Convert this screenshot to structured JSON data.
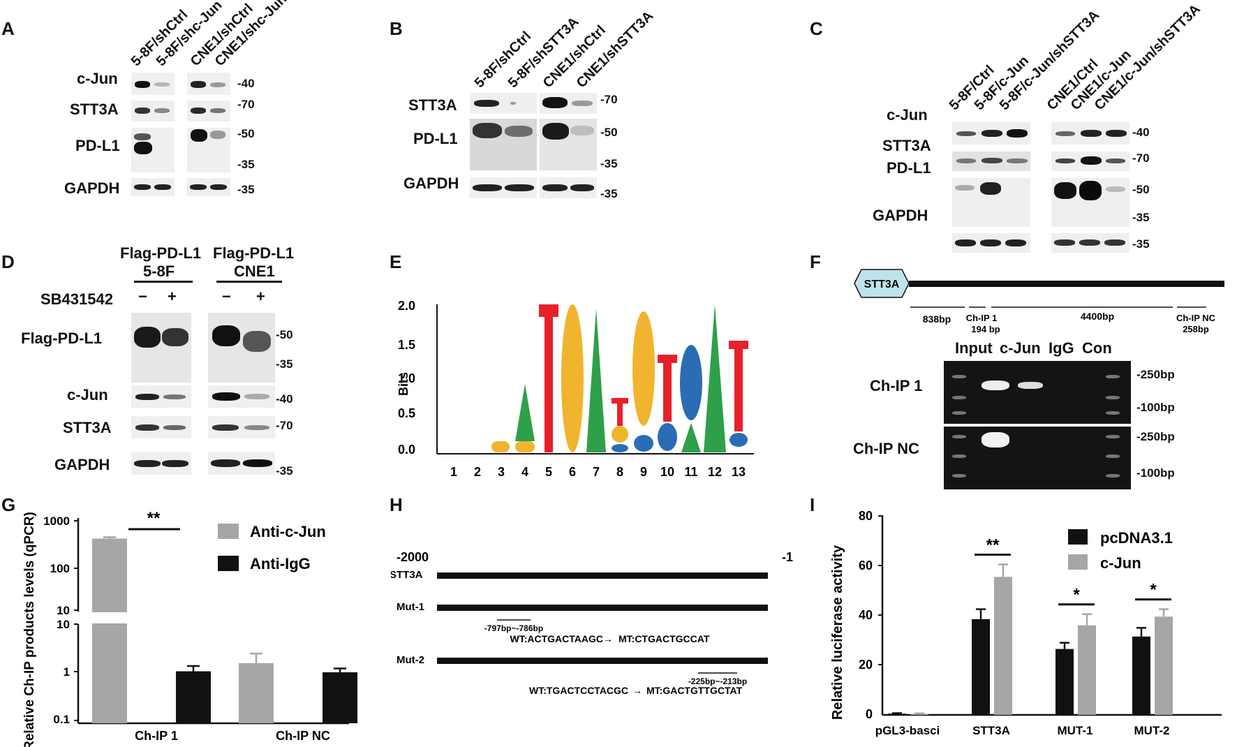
{
  "panels": [
    "A",
    "B",
    "C",
    "D",
    "E",
    "F",
    "G",
    "H",
    "I"
  ],
  "panelA": {
    "lanes": [
      "5-8F/shCtrl",
      "5-8F/shc-Jun",
      "CNE1/shCtrl",
      "CNE1/shc-Jun"
    ],
    "proteins": [
      "c-Jun",
      "STT3A",
      "PD-L1",
      "GAPDH"
    ],
    "mw": [
      "-40",
      "-70",
      "-50",
      "-35",
      "-35"
    ]
  },
  "panelB": {
    "lanes": [
      "5-8F/shCtrl",
      "5-8F/shSTT3A",
      "CNE1/shCtrl",
      "CNE1/shSTT3A"
    ],
    "proteins": [
      "STT3A",
      "PD-L1",
      "GAPDH"
    ],
    "mw": [
      "-70",
      "-50",
      "-35",
      "-35"
    ]
  },
  "panelC": {
    "lanes": [
      "5-8F/Ctrl",
      "5-8F/c-Jun",
      "5-8F/c-Jun/shSTT3A",
      "CNE1/Ctrl",
      "CNE1/c-Jun",
      "CNE1/c-Jun/shSTT3A"
    ],
    "proteins": [
      "c-Jun",
      "STT3A",
      "PD-L1",
      "GAPDH"
    ],
    "mw": [
      "-40",
      "-70",
      "-50",
      "-35",
      "-35"
    ]
  },
  "panelD": {
    "group1_title": "Flag-PD-L1",
    "group1_cell": "5-8F",
    "group2_title": "Flag-PD-L1",
    "group2_cell": "CNE1",
    "treatment": "SB431542",
    "signs": [
      "−",
      "+",
      "−",
      "+"
    ],
    "proteins": [
      "Flag-PD-L1",
      "c-Jun",
      "STT3A",
      "GAPDH"
    ],
    "mw": [
      "-50",
      "-35",
      "-40",
      "-70",
      "-35"
    ]
  },
  "panelE": {
    "ylabel": "Bits",
    "yticks": [
      "2.0",
      "1.5",
      "1.0",
      "0.5",
      "0.0"
    ],
    "positions": [
      "1",
      "2",
      "3",
      "4",
      "5",
      "6",
      "7",
      "8",
      "9",
      "10",
      "11",
      "12",
      "13"
    ],
    "motif": [
      "A",
      "T",
      "G",
      "A",
      "T",
      "G",
      "T",
      "C",
      "A",
      "T"
    ]
  },
  "panelF": {
    "gene": "STT3A",
    "segments": [
      "838bp",
      "Ch-IP 1",
      "194 bp",
      "4400bp",
      "Ch-IP NC",
      "258bp"
    ],
    "gel_columns": [
      "Input",
      "c-Jun",
      "IgG",
      "Con"
    ],
    "gel_rows": [
      "Ch-IP 1",
      "Ch-IP NC"
    ],
    "markers": [
      "-250bp",
      "-100bp",
      "-250bp",
      "-100bp"
    ]
  },
  "panelG": {
    "chart_data": {
      "type": "bar",
      "categories": [
        "Ch-IP 1",
        "Ch-IP NC"
      ],
      "series": [
        {
          "name": "Anti-c-Jun",
          "values": [
            400,
            1.55
          ],
          "errors": [
            30,
            0.9
          ],
          "color": "#a6a6a6"
        },
        {
          "name": "Anti-IgG",
          "values": [
            1.05,
            1.0
          ],
          "errors": [
            0.3,
            0.2
          ],
          "color": "#111111"
        }
      ],
      "ylabel": "Relative Ch-IP products levels (qPCR)",
      "yscale": "log",
      "axis_break": true,
      "yticks_upper": [
        "1000",
        "100",
        "10"
      ],
      "yticks_lower": [
        "10",
        "1",
        "0.1"
      ],
      "significance": "**",
      "legend_position": "top-right"
    }
  },
  "panelH": {
    "start": "-2000",
    "end": "-1",
    "rows": [
      "STT3A",
      "Mut-1",
      "Mut-2"
    ],
    "mut1_range": "-797bp~-786bp",
    "mut1_seq_wt": "WT:ACTGACTAAGC",
    "mut1_seq_mt": "MT:CTGACTGCCAT",
    "mut2_range": "-225bp~-213bp",
    "mut2_seq_wt": "WT:TGACTCCTACGC",
    "mut2_seq_mt": "MT:GACTGTTGCTAT",
    "arrow": "→"
  },
  "panelI": {
    "chart_data": {
      "type": "bar",
      "categories": [
        "pGL3-basci",
        "STT3A",
        "MUT-1",
        "MUT-2"
      ],
      "series": [
        {
          "name": "pcDNA3.1",
          "values": [
            0.5,
            38.5,
            26.5,
            31.5
          ],
          "errors": [
            0.2,
            4,
            2.5,
            3.5
          ],
          "color": "#111111"
        },
        {
          "name": "c-Jun",
          "values": [
            0.4,
            55.5,
            36,
            39.5
          ],
          "errors": [
            0.2,
            5,
            4.5,
            3
          ],
          "color": "#a6a6a6"
        }
      ],
      "ylabel": "Relative luciferase activity",
      "ylim": [
        0,
        80
      ],
      "yticks": [
        "80",
        "60",
        "40",
        "20",
        "0"
      ],
      "significance": [
        "",
        "**",
        "*",
        "*"
      ],
      "legend_position": "top-right"
    }
  }
}
